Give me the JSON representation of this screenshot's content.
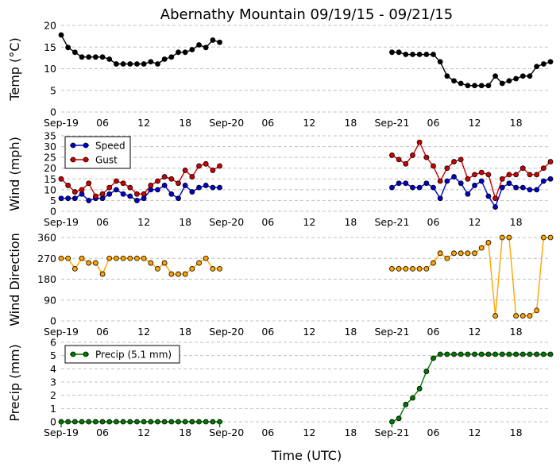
{
  "title": "Abernathy Mountain 09/19/15 - 09/21/15",
  "xlabel": "Time (UTC)",
  "x_tick_labels": [
    "Sep-19",
    "06",
    "12",
    "18",
    "Sep-20",
    "06",
    "12",
    "18",
    "Sep-21",
    "06",
    "12",
    "18"
  ],
  "colors": {
    "temp": "#000000",
    "speed": "#0000cc",
    "gust": "#cc0000",
    "direction": "#ffa500",
    "precip": "#007700"
  },
  "chart_data": [
    {
      "type": "line",
      "name": "temperature",
      "ylabel": "Temp (°C)",
      "ylim": [
        0,
        20
      ],
      "yticks": [
        0,
        5,
        10,
        15,
        20
      ],
      "x_unit": "hours since Sep-19 00 UTC",
      "xlim": [
        0,
        71
      ],
      "series": [
        {
          "name": "Temp",
          "x": [
            0,
            1,
            2,
            3,
            4,
            5,
            6,
            7,
            8,
            9,
            10,
            11,
            12,
            13,
            14,
            15,
            16,
            17,
            18,
            19,
            20,
            21,
            22,
            23
          ],
          "values": [
            17.8,
            14.9,
            13.8,
            12.7,
            12.7,
            12.7,
            12.7,
            12.2,
            11.1,
            11.1,
            11.1,
            11.1,
            11.1,
            11.6,
            11.1,
            12.2,
            12.7,
            13.8,
            13.8,
            14.4,
            15.5,
            14.9,
            16.6,
            16.1
          ]
        },
        {
          "name": "Temp",
          "x": [
            48,
            49,
            50,
            51,
            52,
            53,
            54,
            55,
            56,
            57,
            58,
            59,
            60,
            61,
            62,
            63,
            64,
            65,
            66,
            67,
            68,
            69,
            70,
            71
          ],
          "values": [
            13.8,
            13.8,
            13.3,
            13.3,
            13.3,
            13.3,
            13.3,
            11.6,
            8.3,
            7.2,
            6.6,
            6.1,
            6.1,
            6.1,
            6.1,
            8.3,
            6.6,
            7.2,
            7.7,
            8.3,
            8.3,
            10.5,
            11.1,
            11.6
          ]
        }
      ]
    },
    {
      "type": "line",
      "name": "wind",
      "ylabel": "Wind (mph)",
      "ylim": [
        0,
        35
      ],
      "yticks": [
        0,
        5,
        10,
        15,
        20,
        25,
        30,
        35
      ],
      "legend": [
        "Speed",
        "Gust"
      ],
      "series": [
        {
          "name": "Speed",
          "x": [
            0,
            1,
            2,
            3,
            4,
            5,
            6,
            7,
            8,
            9,
            10,
            11,
            12,
            13,
            14,
            15,
            16,
            17,
            18,
            19,
            20,
            21,
            22,
            23
          ],
          "values": [
            6,
            6,
            6,
            8,
            5,
            6,
            6,
            8,
            10,
            8,
            7,
            5,
            6,
            10,
            10,
            12,
            8,
            6,
            12,
            9,
            11,
            12,
            11,
            11
          ]
        },
        {
          "name": "Speed",
          "x": [
            48,
            49,
            50,
            51,
            52,
            53,
            54,
            55,
            56,
            57,
            58,
            59,
            60,
            61,
            62,
            63,
            64,
            65,
            66,
            67,
            68,
            69,
            70,
            71
          ],
          "values": [
            11,
            13,
            13,
            11,
            11,
            13,
            11,
            6,
            14,
            16,
            13,
            8,
            12,
            14,
            7,
            2,
            11,
            13,
            11,
            11,
            10,
            10,
            14,
            15
          ]
        },
        {
          "name": "Gust",
          "x": [
            0,
            1,
            2,
            3,
            4,
            5,
            6,
            7,
            8,
            9,
            10,
            11,
            12,
            13,
            14,
            15,
            16,
            17,
            18,
            19,
            20,
            21,
            22,
            23
          ],
          "values": [
            15,
            12,
            9,
            10,
            13,
            7,
            8,
            11,
            14,
            13,
            11,
            8,
            8,
            12,
            14,
            16,
            15,
            13,
            19,
            16,
            21,
            22,
            19,
            21
          ]
        },
        {
          "name": "Gust",
          "x": [
            48,
            49,
            50,
            51,
            52,
            53,
            54,
            55,
            56,
            57,
            58,
            59,
            60,
            61,
            62,
            63,
            64,
            65,
            66,
            67,
            68,
            69,
            70,
            71
          ],
          "values": [
            26,
            24,
            22,
            26,
            32,
            25,
            21,
            14,
            20,
            23,
            24,
            15,
            17,
            18,
            17,
            6,
            15,
            17,
            17,
            20,
            17,
            17,
            20,
            23
          ]
        }
      ]
    },
    {
      "type": "line",
      "name": "wind_direction",
      "ylabel": "Wind Direction",
      "ylim": [
        0,
        360
      ],
      "yticks": [
        0,
        90,
        180,
        270,
        360
      ],
      "series": [
        {
          "name": "Direction",
          "x": [
            0,
            1,
            2,
            3,
            4,
            5,
            6,
            7,
            8,
            9,
            10,
            11,
            12,
            13,
            14,
            15,
            16,
            17,
            18,
            19,
            20,
            21,
            22,
            23
          ],
          "values": [
            270,
            270,
            225,
            270,
            250,
            250,
            202,
            270,
            270,
            270,
            270,
            270,
            270,
            250,
            225,
            250,
            202,
            202,
            202,
            225,
            250,
            270,
            225,
            225
          ]
        },
        {
          "name": "Direction",
          "x": [
            48,
            49,
            50,
            51,
            52,
            53,
            54,
            55,
            56,
            57,
            58,
            59,
            60,
            61,
            62,
            63,
            64,
            65,
            66,
            67,
            68,
            69,
            70,
            71
          ],
          "values": [
            225,
            225,
            225,
            225,
            225,
            225,
            250,
            292,
            270,
            292,
            292,
            292,
            292,
            315,
            338,
            22,
            360,
            360,
            22,
            22,
            22,
            45,
            360,
            360
          ]
        }
      ]
    },
    {
      "type": "line",
      "name": "precip",
      "ylabel": "Precip (mm)",
      "ylim": [
        0,
        6
      ],
      "yticks": [
        0,
        1,
        2,
        3,
        4,
        5,
        6
      ],
      "legend": [
        "Precip (5.1 mm)"
      ],
      "series": [
        {
          "name": "Precip",
          "x": [
            0,
            1,
            2,
            3,
            4,
            5,
            6,
            7,
            8,
            9,
            10,
            11,
            12,
            13,
            14,
            15,
            16,
            17,
            18,
            19,
            20,
            21,
            22,
            23
          ],
          "values": [
            0,
            0,
            0,
            0,
            0,
            0,
            0,
            0,
            0,
            0,
            0,
            0,
            0,
            0,
            0,
            0,
            0,
            0,
            0,
            0,
            0,
            0,
            0,
            0
          ]
        },
        {
          "name": "Precip",
          "x": [
            48,
            49,
            50,
            51,
            52,
            53,
            54,
            55,
            56,
            57,
            58,
            59,
            60,
            61,
            62,
            63,
            64,
            65,
            66,
            67,
            68,
            69,
            70,
            71
          ],
          "values": [
            0,
            0.25,
            1.3,
            1.8,
            2.5,
            3.8,
            4.8,
            5.1,
            5.1,
            5.1,
            5.1,
            5.1,
            5.1,
            5.1,
            5.1,
            5.1,
            5.1,
            5.1,
            5.1,
            5.1,
            5.1,
            5.1,
            5.1,
            5.1
          ]
        }
      ]
    }
  ]
}
